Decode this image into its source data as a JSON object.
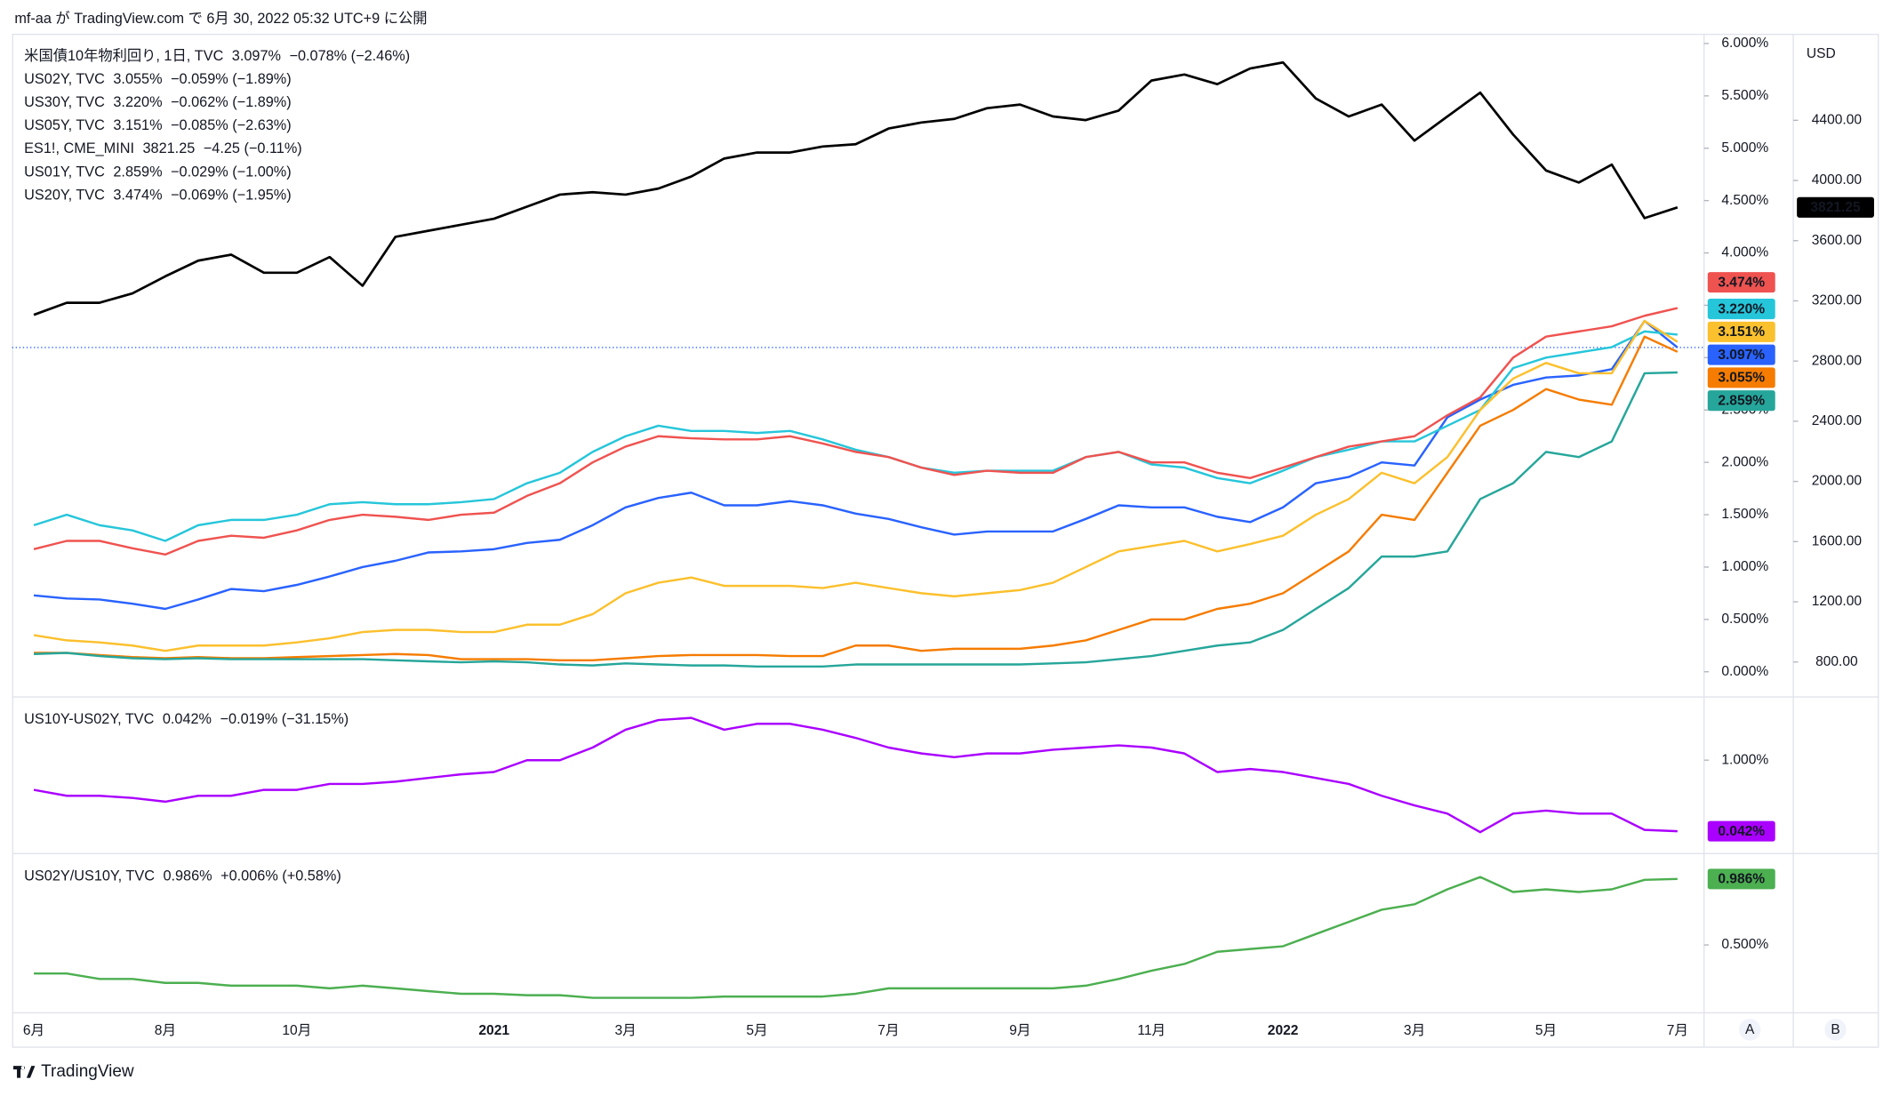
{
  "header": {
    "text": "mf-aa が TradingView.com で 6月 30, 2022 05:32 UTC+9 に公開"
  },
  "footer": {
    "brand": "TradingView"
  },
  "scale_buttons": [
    "A",
    "B"
  ],
  "chart_data": [
    {
      "type": "line",
      "categories": [
        "6月",
        null,
        null,
        null,
        "8月",
        null,
        null,
        null,
        "10月",
        null,
        null,
        null,
        null,
        null,
        "2021",
        null,
        null,
        null,
        "3月",
        null,
        null,
        null,
        "5月",
        null,
        null,
        null,
        "7月",
        null,
        null,
        null,
        "9月",
        null,
        null,
        null,
        "11月",
        null,
        null,
        null,
        "2022",
        null,
        null,
        null,
        "3月",
        null,
        null,
        null,
        "5月",
        null,
        null,
        null,
        "7月"
      ],
      "ylim": [
        -0.24,
        6.07
      ],
      "yticks": [
        {
          "value": 0,
          "label": "0.000%"
        },
        {
          "value": 0.5,
          "label": "0.500%"
        },
        {
          "value": 1,
          "label": "1.000%"
        },
        {
          "value": 1.5,
          "label": "1.500%"
        },
        {
          "value": 2,
          "label": "2.000%"
        },
        {
          "value": 2.5,
          "label": "2.500%"
        },
        {
          "value": 3,
          "label": "3.000%"
        },
        {
          "value": 3.5,
          "label": "3.500%"
        },
        {
          "value": 4,
          "label": "4.000%"
        },
        {
          "value": 4.5,
          "label": "4.500%"
        },
        {
          "value": 5,
          "label": "5.000%"
        },
        {
          "value": 5.5,
          "label": "5.500%"
        },
        {
          "value": 6,
          "label": "6.000%"
        }
      ],
      "y2lim": [
        568,
        4959
      ],
      "y2_unit": "USD",
      "y2ticks": [
        {
          "value": 800,
          "label": "800.00"
        },
        {
          "value": 1200,
          "label": "1200.00"
        },
        {
          "value": 1600,
          "label": "1600.00"
        },
        {
          "value": 2000,
          "label": "2000.00"
        },
        {
          "value": 2400,
          "label": "2400.00"
        },
        {
          "value": 2800,
          "label": "2800.00"
        },
        {
          "value": 3200,
          "label": "3200.00"
        },
        {
          "value": 3600,
          "label": "3600.00"
        },
        {
          "value": 4000,
          "label": "4000.00"
        },
        {
          "value": 4400,
          "label": "4400.00"
        }
      ],
      "series": [
        {
          "name": "米国債10年物利回り, 1日, TVC",
          "color": "#2962ff",
          "price_line": true,
          "last_value_label": "3.097%",
          "change": "−0.078% (−2.46%)",
          "values": [
            0.73,
            0.7,
            0.69,
            0.65,
            0.6,
            0.69,
            0.79,
            0.77,
            0.83,
            0.91,
            1.0,
            1.06,
            1.14,
            1.15,
            1.17,
            1.23,
            1.26,
            1.4,
            1.57,
            1.66,
            1.71,
            1.59,
            1.59,
            1.63,
            1.59,
            1.51,
            1.46,
            1.38,
            1.31,
            1.34,
            1.34,
            1.34,
            1.46,
            1.59,
            1.57,
            1.57,
            1.48,
            1.43,
            1.57,
            1.8,
            1.86,
            2.0,
            1.97,
            2.43,
            2.6,
            2.74,
            2.81,
            2.83,
            2.89,
            3.35,
            3.097
          ]
        },
        {
          "name": "US02Y, TVC",
          "color": "#f57c00",
          "last_value_label": "3.055%",
          "change": "−0.059% (−1.89%)",
          "values": [
            0.18,
            0.18,
            0.16,
            0.14,
            0.13,
            0.14,
            0.13,
            0.13,
            0.14,
            0.15,
            0.16,
            0.17,
            0.16,
            0.12,
            0.12,
            0.12,
            0.11,
            0.11,
            0.13,
            0.15,
            0.16,
            0.16,
            0.16,
            0.15,
            0.15,
            0.25,
            0.25,
            0.2,
            0.22,
            0.22,
            0.22,
            0.25,
            0.3,
            0.4,
            0.5,
            0.5,
            0.6,
            0.65,
            0.75,
            0.95,
            1.15,
            1.5,
            1.45,
            1.9,
            2.35,
            2.5,
            2.7,
            2.6,
            2.55,
            3.2,
            3.055
          ]
        },
        {
          "name": "US30Y, TVC",
          "color": "#26c6da",
          "last_value_label": "3.220%",
          "change": "−0.062% (−1.89%)",
          "values": [
            1.4,
            1.5,
            1.4,
            1.35,
            1.25,
            1.4,
            1.45,
            1.45,
            1.5,
            1.6,
            1.62,
            1.6,
            1.6,
            1.62,
            1.65,
            1.8,
            1.9,
            2.1,
            2.25,
            2.35,
            2.3,
            2.3,
            2.28,
            2.3,
            2.22,
            2.12,
            2.05,
            1.95,
            1.9,
            1.92,
            1.92,
            1.92,
            2.05,
            2.1,
            1.98,
            1.95,
            1.85,
            1.8,
            1.92,
            2.05,
            2.12,
            2.2,
            2.2,
            2.35,
            2.5,
            2.9,
            3.0,
            3.05,
            3.1,
            3.25,
            3.22
          ]
        },
        {
          "name": "US05Y, TVC",
          "color": "#fbc02d",
          "last_value_label": "3.151%",
          "change": "−0.085% (−2.63%)",
          "values": [
            0.35,
            0.3,
            0.28,
            0.25,
            0.2,
            0.25,
            0.25,
            0.25,
            0.28,
            0.32,
            0.38,
            0.4,
            0.4,
            0.38,
            0.38,
            0.45,
            0.45,
            0.55,
            0.75,
            0.85,
            0.9,
            0.82,
            0.82,
            0.82,
            0.8,
            0.85,
            0.8,
            0.75,
            0.72,
            0.75,
            0.78,
            0.85,
            1.0,
            1.15,
            1.2,
            1.25,
            1.15,
            1.22,
            1.3,
            1.5,
            1.65,
            1.9,
            1.8,
            2.05,
            2.5,
            2.8,
            2.95,
            2.85,
            2.85,
            3.35,
            3.151
          ]
        },
        {
          "name": "ES1!, CME_MINI",
          "color": "#000000",
          "axis": "y2",
          "last_value_label": "3821.25",
          "change": "−4.25 (−0.11%)",
          "values": [
            3107,
            3187,
            3187,
            3250,
            3363,
            3467,
            3507,
            3387,
            3387,
            3491,
            3300,
            3626,
            3666,
            3706,
            3746,
            3826,
            3906,
            3922,
            3906,
            3946,
            4026,
            4146,
            4186,
            4186,
            4226,
            4241,
            4345,
            4385,
            4409,
            4481,
            4505,
            4425,
            4401,
            4465,
            4664,
            4704,
            4640,
            4744,
            4784,
            4545,
            4425,
            4505,
            4265,
            4425,
            4584,
            4305,
            4066,
            3986,
            4106,
            3750,
            3821.25
          ]
        },
        {
          "name": "US01Y, TVC",
          "color": "#26a69a",
          "last_value_label": "2.859%",
          "change": "−0.029% (−1.00%)",
          "values": [
            0.17,
            0.18,
            0.15,
            0.13,
            0.12,
            0.13,
            0.12,
            0.12,
            0.12,
            0.12,
            0.12,
            0.11,
            0.1,
            0.09,
            0.1,
            0.09,
            0.07,
            0.06,
            0.08,
            0.07,
            0.06,
            0.06,
            0.05,
            0.05,
            0.05,
            0.07,
            0.07,
            0.07,
            0.07,
            0.07,
            0.07,
            0.08,
            0.09,
            0.12,
            0.15,
            0.2,
            0.25,
            0.28,
            0.4,
            0.6,
            0.8,
            1.1,
            1.1,
            1.15,
            1.65,
            1.8,
            2.1,
            2.05,
            2.2,
            2.85,
            2.859
          ]
        },
        {
          "name": "US20Y, TVC",
          "color": "#ef5350",
          "last_value_label": "3.474%",
          "change": "−0.069% (−1.95%)",
          "values": [
            1.17,
            1.25,
            1.25,
            1.18,
            1.12,
            1.25,
            1.3,
            1.28,
            1.35,
            1.45,
            1.5,
            1.48,
            1.45,
            1.5,
            1.52,
            1.68,
            1.8,
            2.0,
            2.15,
            2.25,
            2.23,
            2.22,
            2.22,
            2.25,
            2.18,
            2.1,
            2.05,
            1.95,
            1.88,
            1.92,
            1.9,
            1.9,
            2.05,
            2.1,
            2.0,
            2.0,
            1.9,
            1.85,
            1.95,
            2.05,
            2.15,
            2.2,
            2.25,
            2.45,
            2.62,
            3.0,
            3.2,
            3.25,
            3.3,
            3.4,
            3.474
          ]
        }
      ]
    },
    {
      "type": "line",
      "ylim": [
        -0.26,
        1.82
      ],
      "yticks": [
        {
          "value": 1,
          "label": "1.000%"
        }
      ],
      "series": [
        {
          "name": "US10Y-US02Y, TVC",
          "color": "#aa00ff",
          "last_value_label": "0.042%",
          "change": "−0.019% (−31.15%)",
          "values": [
            0.6,
            0.52,
            0.52,
            0.49,
            0.44,
            0.52,
            0.52,
            0.6,
            0.6,
            0.68,
            0.68,
            0.71,
            0.76,
            0.81,
            0.84,
            1.0,
            1.0,
            1.17,
            1.41,
            1.54,
            1.57,
            1.41,
            1.49,
            1.49,
            1.41,
            1.3,
            1.17,
            1.09,
            1.04,
            1.09,
            1.09,
            1.14,
            1.17,
            1.2,
            1.17,
            1.09,
            0.84,
            0.88,
            0.84,
            0.76,
            0.68,
            0.52,
            0.39,
            0.28,
            0.03,
            0.28,
            0.32,
            0.28,
            0.28,
            0.06,
            0.042
          ]
        }
      ]
    },
    {
      "type": "line",
      "ylim": [
        0.0,
        1.155
      ],
      "yticks": [
        {
          "value": 0.5,
          "label": "0.500%"
        }
      ],
      "series": [
        {
          "name": "US02Y/US10Y, TVC",
          "color": "#4caf50",
          "last_value_label": "0.986%",
          "change": "+0.006% (+0.58%)",
          "values": [
            0.29,
            0.29,
            0.25,
            0.25,
            0.22,
            0.22,
            0.2,
            0.2,
            0.2,
            0.18,
            0.2,
            0.18,
            0.16,
            0.14,
            0.14,
            0.13,
            0.13,
            0.11,
            0.11,
            0.11,
            0.11,
            0.12,
            0.12,
            0.12,
            0.12,
            0.14,
            0.18,
            0.18,
            0.18,
            0.18,
            0.18,
            0.18,
            0.2,
            0.25,
            0.31,
            0.36,
            0.45,
            0.47,
            0.49,
            0.58,
            0.67,
            0.76,
            0.8,
            0.91,
            1.0,
            0.89,
            0.91,
            0.89,
            0.91,
            0.98,
            0.986
          ]
        }
      ]
    }
  ]
}
